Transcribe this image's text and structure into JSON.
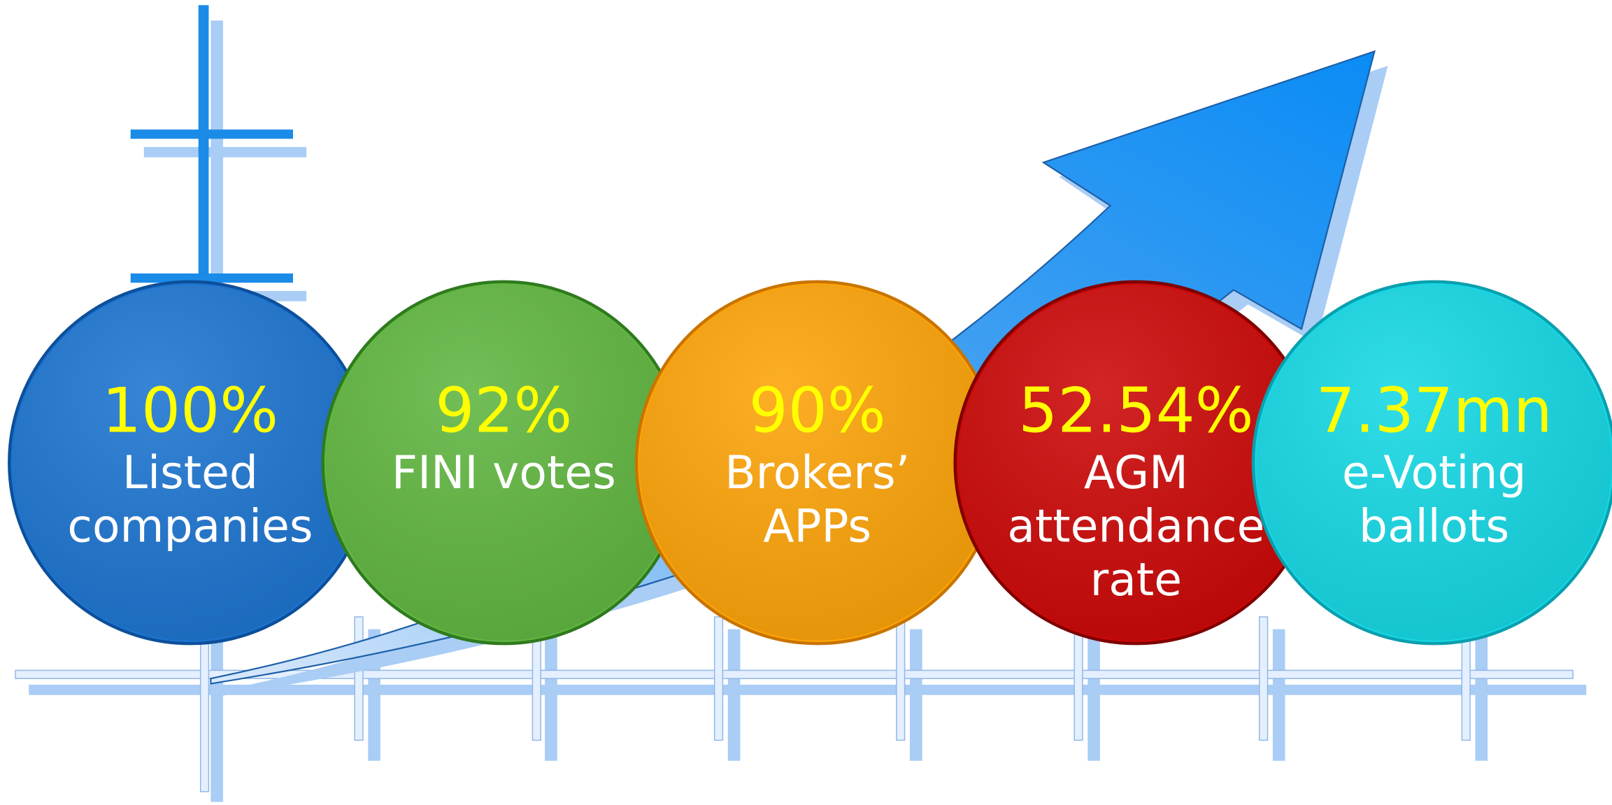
{
  "items": [
    {
      "value": "100%",
      "lines": [
        "Listed",
        "companies"
      ]
    },
    {
      "value": "92%",
      "lines": [
        "FINI votes"
      ]
    },
    {
      "value": "90%",
      "lines": [
        "Brokers’",
        "APPs"
      ]
    },
    {
      "value": "52.54%",
      "lines": [
        "AGM",
        "attendance",
        "rate"
      ]
    },
    {
      "value": "7.37mn",
      "lines": [
        "e-Voting",
        "ballots"
      ]
    }
  ]
}
